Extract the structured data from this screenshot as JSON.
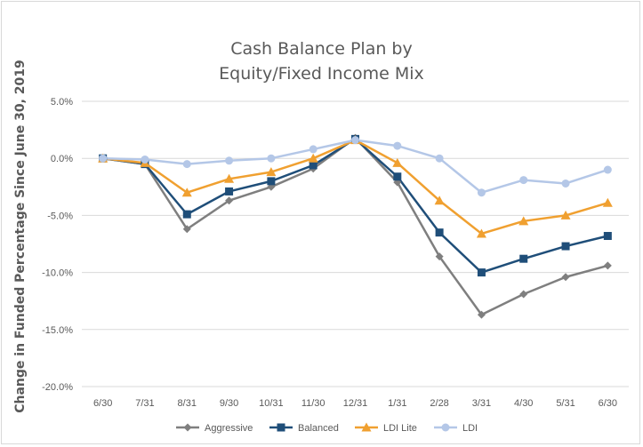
{
  "chart_data": {
    "type": "line",
    "title_line1": "Cash Balance Plan by",
    "title_line2": "Equity/Fixed Income Mix",
    "ylabel": "Change in Funded Percentage Since June 30, 2019",
    "xlabel": "",
    "categories": [
      "6/30",
      "7/31",
      "8/31",
      "9/30",
      "10/31",
      "11/30",
      "12/31",
      "1/31",
      "2/28",
      "3/31",
      "4/30",
      "5/31",
      "6/30"
    ],
    "ylim": [
      -20.0,
      5.0
    ],
    "yticks": [
      5.0,
      0.0,
      -5.0,
      -10.0,
      -15.0,
      -20.0
    ],
    "ytick_labels": [
      "5.0%",
      "0.0%",
      "-5.0%",
      "-10.0%",
      "-15.0%",
      "-20.0%"
    ],
    "grid": "horizontal",
    "legend_position": "bottom",
    "series": [
      {
        "name": "Aggressive",
        "color": "#7f7f7f",
        "marker": "diamond",
        "values": [
          0.0,
          -0.5,
          -6.2,
          -3.7,
          -2.5,
          -0.9,
          1.8,
          -2.1,
          -8.6,
          -13.7,
          -11.9,
          -10.4,
          -9.4
        ]
      },
      {
        "name": "Balanced",
        "color": "#1f4e79",
        "marker": "square",
        "values": [
          0.0,
          -0.5,
          -4.9,
          -2.9,
          -2.0,
          -0.6,
          1.7,
          -1.6,
          -6.5,
          -10.0,
          -8.8,
          -7.7,
          -6.8
        ]
      },
      {
        "name": "LDI Lite",
        "color": "#f0a030",
        "marker": "triangle",
        "values": [
          0.0,
          -0.4,
          -3.0,
          -1.8,
          -1.2,
          0.0,
          1.6,
          -0.4,
          -3.7,
          -6.6,
          -5.5,
          -5.0,
          -3.9
        ]
      },
      {
        "name": "LDI",
        "color": "#b4c7e7",
        "marker": "circle",
        "values": [
          0.0,
          -0.1,
          -0.5,
          -0.2,
          0.0,
          0.8,
          1.6,
          1.1,
          0.0,
          -3.0,
          -1.9,
          -2.2,
          -1.0
        ]
      }
    ]
  }
}
